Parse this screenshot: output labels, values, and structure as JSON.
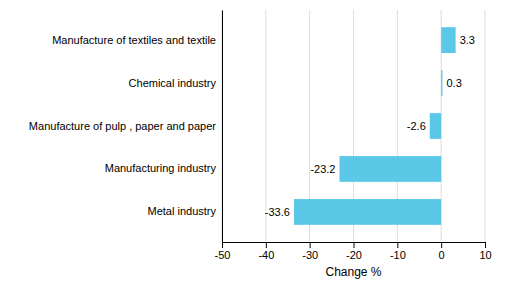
{
  "chart_data": {
    "type": "bar",
    "orientation": "horizontal",
    "categories": [
      "Metal industry",
      "Manufacturing industry",
      "Manufacture of pulp , paper and paper",
      "Chemical industry",
      "Manufacture of textiles and textile"
    ],
    "values": [
      -33.6,
      -23.2,
      -2.6,
      0.3,
      3.3
    ],
    "color": "#5bc8e8",
    "xlabel": "Change %",
    "xlim": [
      -50,
      10
    ],
    "xticks": [
      -50,
      -40,
      -30,
      -20,
      -10,
      0,
      10
    ],
    "grid": true,
    "data_labels": true
  }
}
